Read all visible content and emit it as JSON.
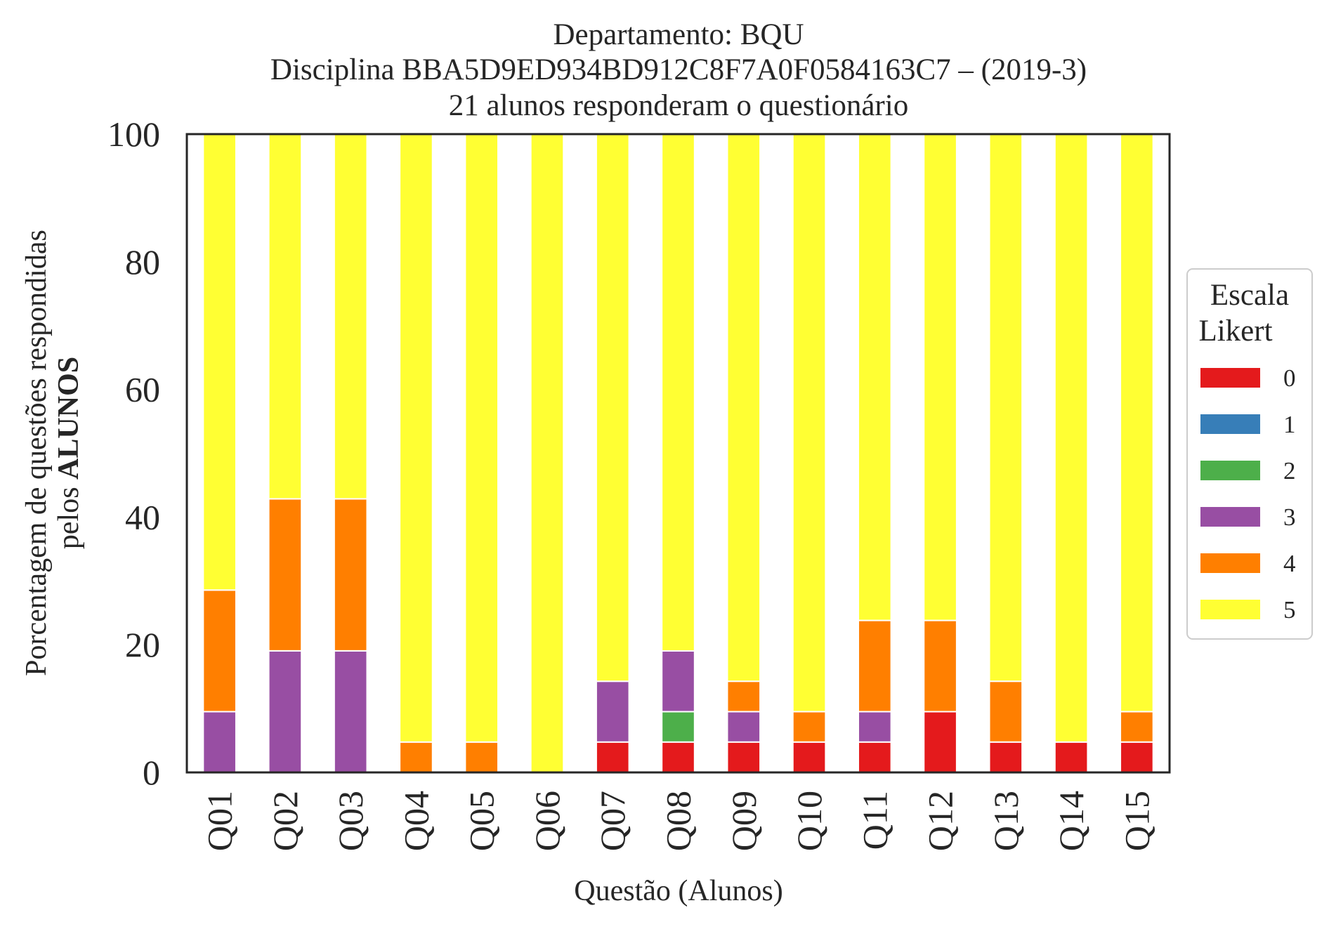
{
  "chart_data": {
    "type": "bar",
    "stacked": true,
    "title_lines": [
      "Departamento: BQU",
      "Disciplina BBA5D9ED934BD912C8F7A0F0584163C7 – (2019-3)",
      "21 alunos responderam o questionário"
    ],
    "xlabel": "Questão (Alunos)",
    "ylabel_line1": "Porcentagem de questões respondidas",
    "ylabel_line2_prefix": "pelos ",
    "ylabel_line2_bold": "ALUNOS",
    "ylim": [
      0,
      100
    ],
    "yticks": [
      "0",
      "20",
      "40",
      "60",
      "80",
      "100"
    ],
    "grid": false,
    "legend_position": "right",
    "legend_title_lines": [
      "Escala",
      "Likert"
    ],
    "categories": [
      "Q01",
      "Q02",
      "Q03",
      "Q04",
      "Q05",
      "Q06",
      "Q07",
      "Q08",
      "Q09",
      "Q10",
      "Q11",
      "Q12",
      "Q13",
      "Q14",
      "Q15"
    ],
    "series": [
      {
        "name": "0",
        "color": "#e41a1c",
        "values": [
          0,
          0,
          0,
          0,
          0,
          0,
          4.76,
          4.76,
          4.76,
          4.76,
          4.76,
          9.52,
          4.76,
          4.76,
          4.76
        ]
      },
      {
        "name": "1",
        "color": "#377eb8",
        "values": [
          0,
          0,
          0,
          0,
          0,
          0,
          0,
          0,
          0,
          0,
          0,
          0,
          0,
          0,
          0
        ]
      },
      {
        "name": "2",
        "color": "#4daf4a",
        "values": [
          0,
          0,
          0,
          0,
          0,
          0,
          0,
          4.76,
          0,
          0,
          0,
          0,
          0,
          0,
          0
        ]
      },
      {
        "name": "3",
        "color": "#984ea3",
        "values": [
          9.52,
          19.05,
          19.05,
          0,
          0,
          0,
          9.52,
          9.52,
          4.76,
          0,
          4.76,
          0,
          0,
          0,
          0
        ]
      },
      {
        "name": "4",
        "color": "#ff7f00",
        "values": [
          19.05,
          23.81,
          23.81,
          4.76,
          4.76,
          0,
          0,
          0,
          4.76,
          4.76,
          14.29,
          14.29,
          9.52,
          0,
          4.76
        ]
      },
      {
        "name": "5",
        "color": "#ffff33",
        "values": [
          71.43,
          57.14,
          57.14,
          95.24,
          95.24,
          100,
          85.71,
          80.95,
          85.71,
          90.48,
          76.19,
          76.19,
          85.71,
          95.24,
          90.48
        ]
      }
    ]
  }
}
